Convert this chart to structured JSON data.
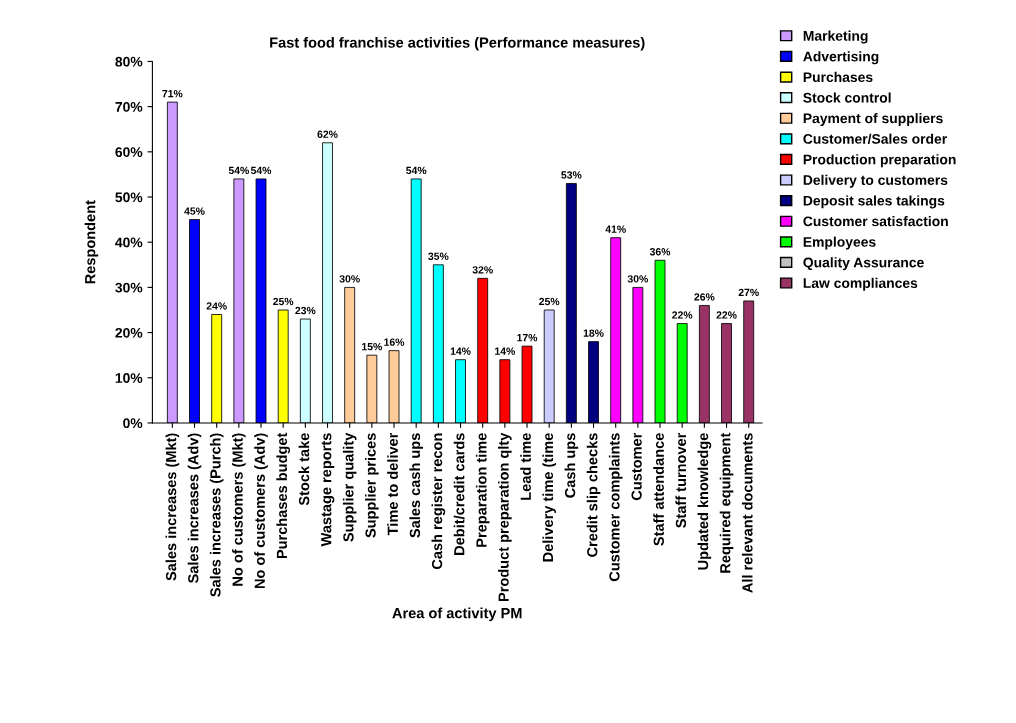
{
  "chart_data": {
    "type": "bar",
    "title": "Fast food franchise activities (Performance measures)",
    "xlabel": "Area of activity PM",
    "ylabel": "Respondent",
    "categories": [
      "Sales increases (Mkt)",
      "Sales increases (Adv)",
      "Sales increases (Purch)",
      "No of customers (Mkt)",
      "No of customers (Adv)",
      "Purchases budget",
      "Stock take",
      "Wastage reports",
      "Supplier quality",
      "Supplier prices",
      "Time to deliver",
      "Sales cash ups",
      "Cash register recon",
      "Debit/credit cards",
      "Preparation time",
      "Product preparation qlty",
      "Lead time",
      "Delivery time (time",
      "Cash ups",
      "Credit slip checks",
      "Customer complaints",
      "Customer",
      "Staff attendance",
      "Staff turnover",
      "Updated knowledge",
      "Required equipment",
      "All relevant documents"
    ],
    "series": [
      {
        "name": "Marketing",
        "color": "#cc99ff",
        "values": [
          71,
          null,
          null,
          54,
          null,
          null,
          null,
          null,
          null,
          null,
          null,
          null,
          null,
          null,
          null,
          null,
          null,
          null,
          null,
          null,
          null,
          null,
          null,
          null,
          null,
          null,
          null
        ],
        "value_labels": [
          "71%",
          null,
          null,
          "54%",
          null,
          null,
          null,
          null,
          null,
          null,
          null,
          null,
          null,
          null,
          null,
          null,
          null,
          null,
          null,
          null,
          null,
          null,
          null,
          null,
          null,
          null,
          null
        ]
      },
      {
        "name": "Advertising",
        "color": "#0000ff",
        "values": [
          null,
          45,
          null,
          null,
          54,
          null,
          null,
          null,
          null,
          null,
          null,
          null,
          null,
          null,
          null,
          null,
          null,
          null,
          null,
          null,
          null,
          null,
          null,
          null,
          null,
          null,
          null
        ],
        "value_labels": [
          null,
          "45%",
          null,
          null,
          "54%",
          null,
          null,
          null,
          null,
          null,
          null,
          null,
          null,
          null,
          null,
          null,
          null,
          null,
          null,
          null,
          null,
          null,
          null,
          null,
          null,
          null,
          null
        ]
      },
      {
        "name": "Purchases",
        "color": "#ffff00",
        "values": [
          null,
          null,
          24,
          null,
          null,
          25,
          null,
          null,
          null,
          null,
          null,
          null,
          null,
          null,
          null,
          null,
          null,
          null,
          null,
          null,
          null,
          null,
          null,
          null,
          null,
          null,
          null
        ],
        "value_labels": [
          null,
          null,
          "24%",
          null,
          null,
          "25%",
          null,
          null,
          null,
          null,
          null,
          null,
          null,
          null,
          null,
          null,
          null,
          null,
          null,
          null,
          null,
          null,
          null,
          null,
          null,
          null,
          null
        ]
      },
      {
        "name": "Stock control",
        "color": "#ccffff",
        "values": [
          null,
          null,
          null,
          null,
          null,
          null,
          23,
          62,
          null,
          null,
          null,
          null,
          null,
          null,
          null,
          null,
          null,
          null,
          null,
          null,
          null,
          null,
          null,
          null,
          null,
          null,
          null
        ],
        "value_labels": [
          null,
          null,
          null,
          null,
          null,
          null,
          "23%",
          "62%",
          null,
          null,
          null,
          null,
          null,
          null,
          null,
          null,
          null,
          null,
          null,
          null,
          null,
          null,
          null,
          null,
          null,
          null,
          null
        ]
      },
      {
        "name": "Payment of suppliers",
        "color": "#ffcc99",
        "values": [
          null,
          null,
          null,
          null,
          null,
          null,
          null,
          null,
          30,
          15,
          16,
          null,
          null,
          null,
          null,
          null,
          null,
          null,
          null,
          null,
          null,
          null,
          null,
          null,
          null,
          null,
          null
        ],
        "value_labels": [
          null,
          null,
          null,
          null,
          null,
          null,
          null,
          null,
          "30%",
          "15%",
          "16%",
          null,
          null,
          null,
          null,
          null,
          null,
          null,
          null,
          null,
          null,
          null,
          null,
          null,
          null,
          null,
          null
        ]
      },
      {
        "name": "Customer/Sales order",
        "color": "#00ffff",
        "values": [
          null,
          null,
          null,
          null,
          null,
          null,
          null,
          null,
          null,
          null,
          null,
          54,
          35,
          14,
          null,
          null,
          null,
          null,
          null,
          null,
          null,
          null,
          null,
          null,
          null,
          null,
          null
        ],
        "value_labels": [
          null,
          null,
          null,
          null,
          null,
          null,
          null,
          null,
          null,
          null,
          null,
          "54%",
          "35%",
          "14%",
          null,
          null,
          null,
          null,
          null,
          null,
          null,
          null,
          null,
          null,
          null,
          null,
          null
        ]
      },
      {
        "name": "Production preparation",
        "color": "#ff0000",
        "values": [
          null,
          null,
          null,
          null,
          null,
          null,
          null,
          null,
          null,
          null,
          null,
          null,
          null,
          null,
          32,
          14,
          17,
          null,
          null,
          null,
          null,
          null,
          null,
          null,
          null,
          null,
          null
        ],
        "value_labels": [
          null,
          null,
          null,
          null,
          null,
          null,
          null,
          null,
          null,
          null,
          null,
          null,
          null,
          null,
          "32%",
          "14%",
          "17%",
          null,
          null,
          null,
          null,
          null,
          null,
          null,
          null,
          null,
          null
        ]
      },
      {
        "name": "Delivery to customers",
        "color": "#ccccff",
        "values": [
          null,
          null,
          null,
          null,
          null,
          null,
          null,
          null,
          null,
          null,
          null,
          null,
          null,
          null,
          null,
          null,
          null,
          25,
          null,
          null,
          null,
          null,
          null,
          null,
          null,
          null,
          null
        ],
        "value_labels": [
          null,
          null,
          null,
          null,
          null,
          null,
          null,
          null,
          null,
          null,
          null,
          null,
          null,
          null,
          null,
          null,
          null,
          "25%",
          null,
          null,
          null,
          null,
          null,
          null,
          null,
          null,
          null
        ]
      },
      {
        "name": "Deposit sales takings",
        "color": "#000080",
        "values": [
          null,
          null,
          null,
          null,
          null,
          null,
          null,
          null,
          null,
          null,
          null,
          null,
          null,
          null,
          null,
          null,
          null,
          null,
          53,
          18,
          null,
          null,
          null,
          null,
          null,
          null,
          null
        ],
        "value_labels": [
          null,
          null,
          null,
          null,
          null,
          null,
          null,
          null,
          null,
          null,
          null,
          null,
          null,
          null,
          null,
          null,
          null,
          null,
          "53%",
          "18%",
          null,
          null,
          null,
          null,
          null,
          null,
          null
        ]
      },
      {
        "name": "Customer satisfaction",
        "color": "#ff00ff",
        "values": [
          null,
          null,
          null,
          null,
          null,
          null,
          null,
          null,
          null,
          null,
          null,
          null,
          null,
          null,
          null,
          null,
          null,
          null,
          null,
          null,
          41,
          30,
          null,
          null,
          null,
          null,
          null
        ],
        "value_labels": [
          null,
          null,
          null,
          null,
          null,
          null,
          null,
          null,
          null,
          null,
          null,
          null,
          null,
          null,
          null,
          null,
          null,
          null,
          null,
          null,
          "41%",
          "30%",
          null,
          null,
          null,
          null,
          null
        ]
      },
      {
        "name": "Employees",
        "color": "#00ff00",
        "values": [
          null,
          null,
          null,
          null,
          null,
          null,
          null,
          null,
          null,
          null,
          null,
          null,
          null,
          null,
          null,
          null,
          null,
          null,
          null,
          null,
          null,
          null,
          36,
          22,
          null,
          null,
          null
        ],
        "value_labels": [
          null,
          null,
          null,
          null,
          null,
          null,
          null,
          null,
          null,
          null,
          null,
          null,
          null,
          null,
          null,
          null,
          null,
          null,
          null,
          null,
          null,
          null,
          "36%",
          "22%",
          null,
          null,
          null
        ]
      },
      {
        "name": "Quality Assurance",
        "color": "#c0c0c0",
        "values": [
          null,
          null,
          null,
          null,
          null,
          null,
          null,
          null,
          null,
          null,
          null,
          null,
          null,
          null,
          null,
          null,
          null,
          null,
          null,
          null,
          null,
          null,
          null,
          null,
          null,
          null,
          null
        ]
      },
      {
        "name": "Law compliances",
        "color": "#993366",
        "values": [
          null,
          null,
          null,
          null,
          null,
          null,
          null,
          null,
          null,
          null,
          null,
          null,
          null,
          null,
          null,
          null,
          null,
          null,
          null,
          null,
          null,
          null,
          null,
          null,
          26,
          22,
          27
        ],
        "value_labels": [
          null,
          null,
          null,
          null,
          null,
          null,
          null,
          null,
          null,
          null,
          null,
          null,
          null,
          null,
          null,
          null,
          null,
          null,
          null,
          null,
          null,
          null,
          null,
          null,
          "26%",
          "22%",
          "27%"
        ]
      }
    ],
    "ylim": [
      0,
      80
    ],
    "yticks": [
      {
        "value": 0,
        "label": "0%"
      },
      {
        "value": 10,
        "label": "10%"
      },
      {
        "value": 20,
        "label": "20%"
      },
      {
        "value": 30,
        "label": "30%"
      },
      {
        "value": 40,
        "label": "40%"
      },
      {
        "value": 50,
        "label": "50%"
      },
      {
        "value": 60,
        "label": "60%"
      },
      {
        "value": 70,
        "label": "70%"
      },
      {
        "value": 80,
        "label": "80%"
      }
    ],
    "grid": false,
    "legend": "right"
  }
}
